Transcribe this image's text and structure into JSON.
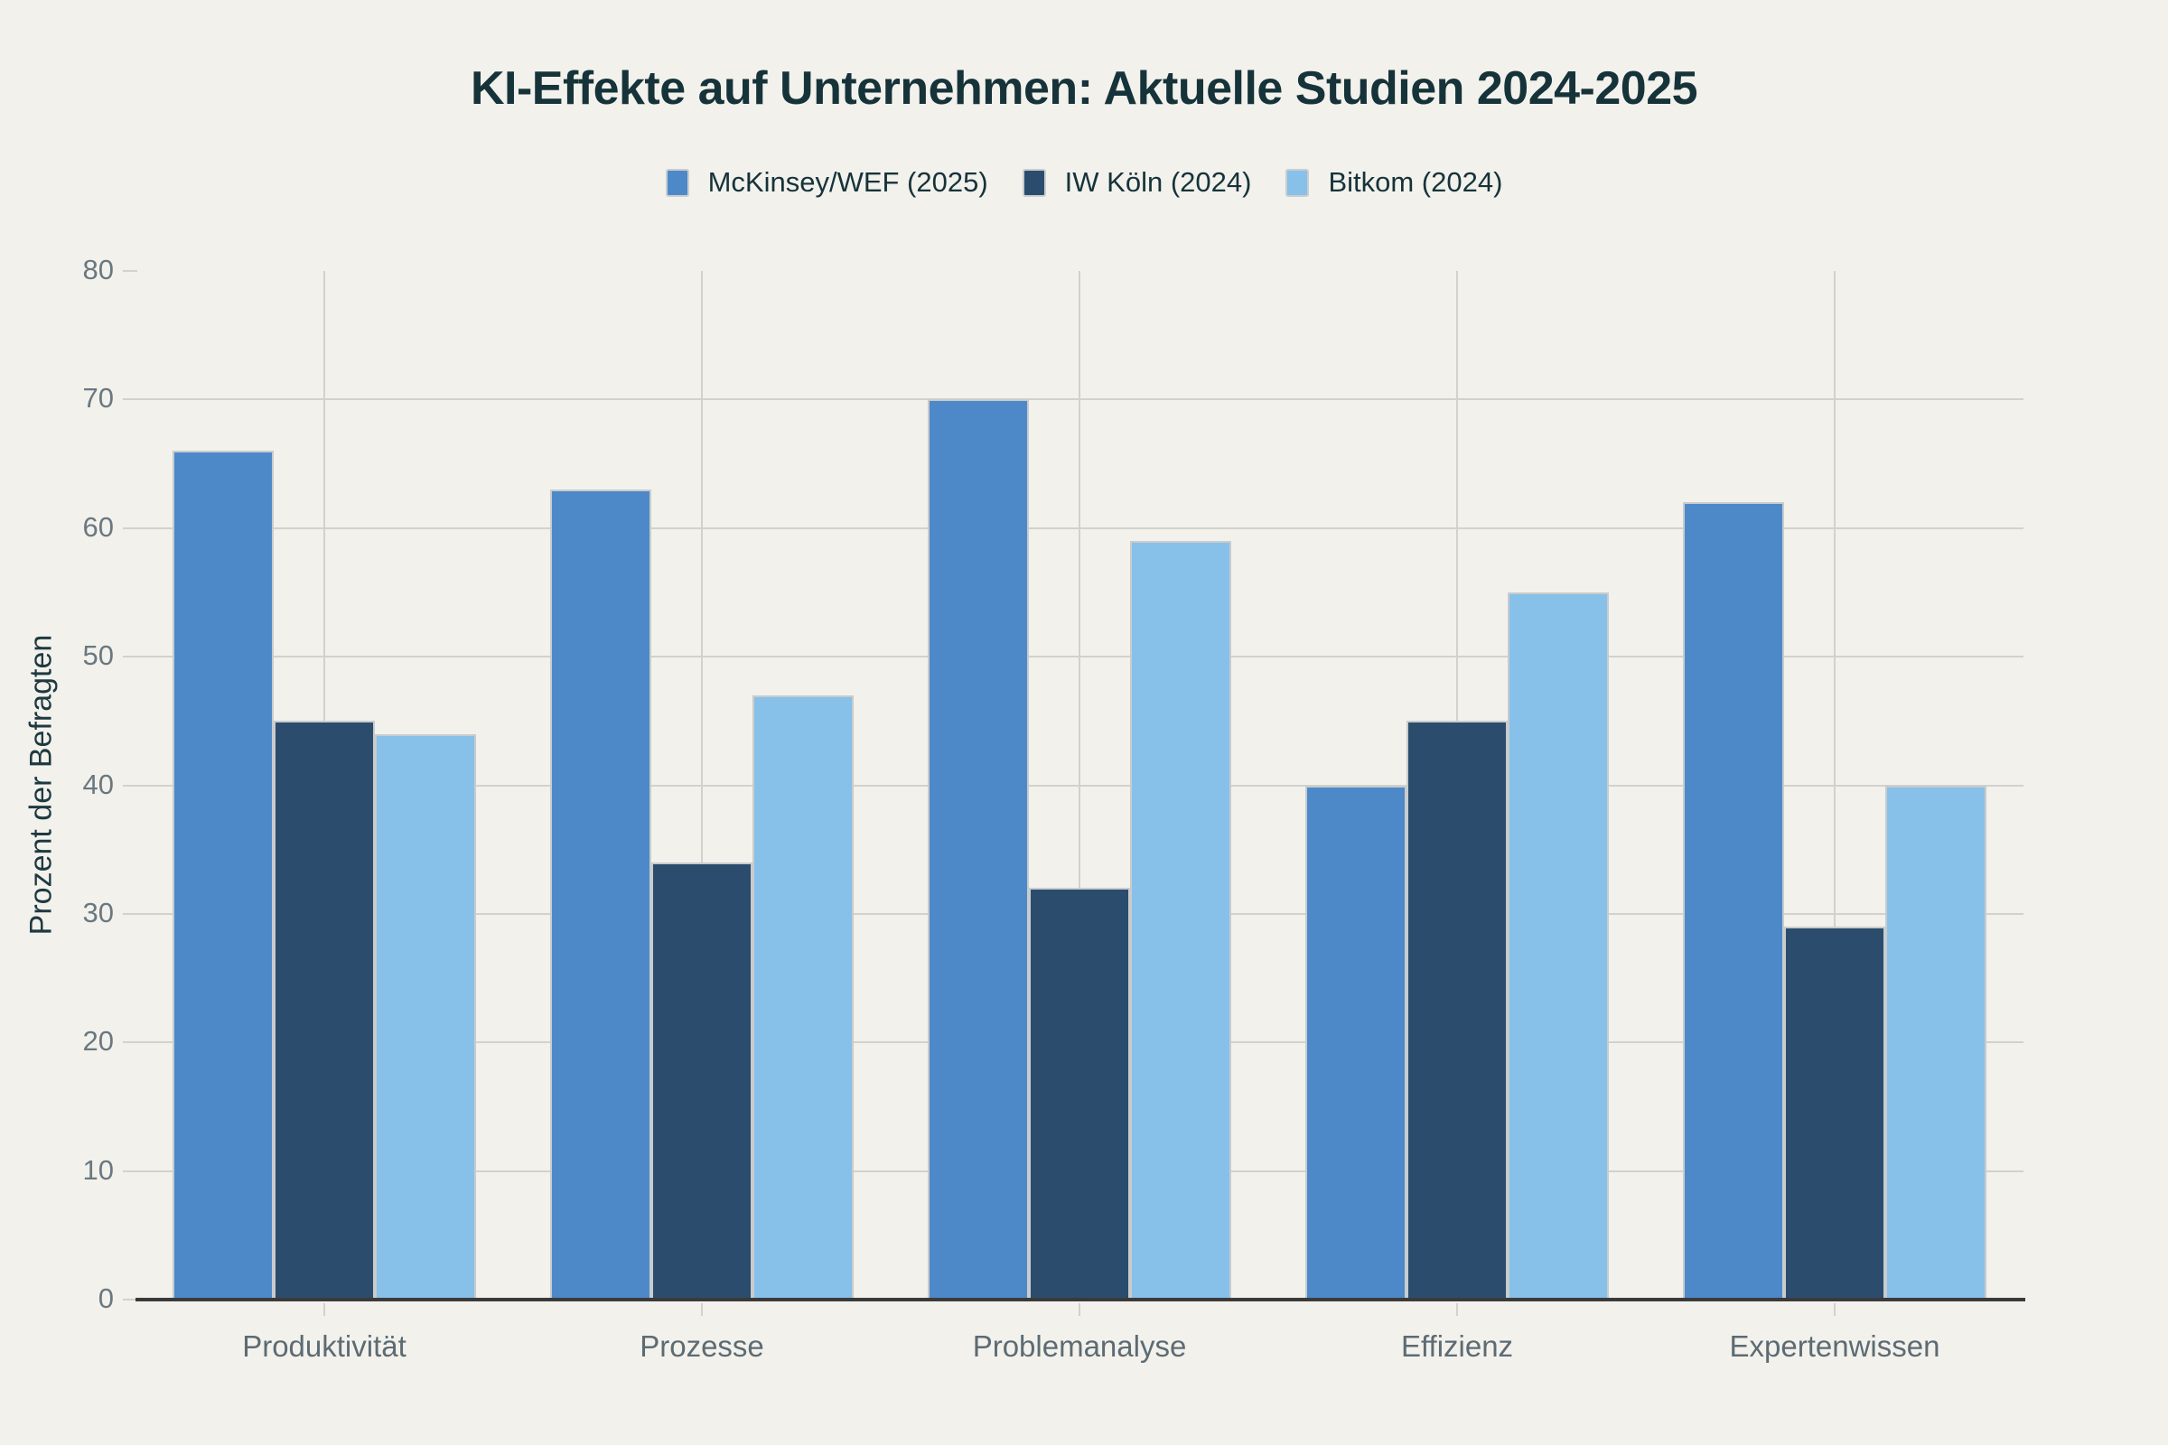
{
  "chart_data": {
    "type": "bar",
    "title": "KI-Effekte auf Unternehmen: Aktuelle Studien 2024-2025",
    "categories": [
      "Produktivität",
      "Prozesse",
      "Problemanalyse",
      "Effizienz",
      "Expertenwissen"
    ],
    "series": [
      {
        "name": "McKinsey/WEF (2025)",
        "color": "#4d89c8",
        "values": [
          66,
          63,
          70,
          40,
          62
        ]
      },
      {
        "name": "IW Köln (2024)",
        "color": "#2b4c6d",
        "values": [
          45,
          34,
          32,
          45,
          29
        ]
      },
      {
        "name": "Bitkom (2024)",
        "color": "#87c1e9",
        "values": [
          44,
          47,
          59,
          55,
          40
        ]
      }
    ],
    "xlabel": "",
    "ylabel": "Prozent der Befragten",
    "ylim": [
      0,
      80
    ],
    "yticks": [
      0,
      10,
      20,
      30,
      40,
      50,
      60,
      70,
      80
    ],
    "grid": true,
    "legend_position": "top-center"
  },
  "colors": {
    "background": "#f2f1ec",
    "title_text": "#16333a",
    "tick_text": "#6a7880",
    "category_text": "#5d6b73",
    "grid_line": "#d2d1cb",
    "axis_line": "#3a3a3a",
    "bar_edge": "#c8cccd"
  }
}
